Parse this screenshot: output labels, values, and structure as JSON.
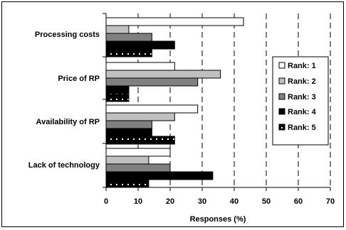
{
  "chart_data": {
    "type": "bar",
    "orientation": "horizontal",
    "categories": [
      "Processing costs",
      "Price of RP",
      "Availability of RP",
      "Lack of technology"
    ],
    "series": [
      {
        "name": "Rank: 1",
        "values": [
          42.9,
          21.4,
          28.6,
          20.0
        ]
      },
      {
        "name": "Rank: 2",
        "values": [
          7.1,
          35.7,
          21.4,
          13.3
        ]
      },
      {
        "name": "Rank: 3",
        "values": [
          14.3,
          28.6,
          14.3,
          20.0
        ]
      },
      {
        "name": "Rank: 4",
        "values": [
          21.4,
          7.1,
          14.3,
          33.3
        ]
      },
      {
        "name": "Rank: 5",
        "values": [
          14.3,
          7.1,
          21.4,
          13.3
        ]
      }
    ],
    "colors": [
      "#ffffff",
      "#c0c0c0",
      "#808080",
      "#000000",
      "#000000"
    ],
    "patterns": [
      "solid",
      "solid",
      "solid",
      "solid",
      "dotted"
    ],
    "xlabel": "Responses (%)",
    "xlim": [
      0,
      70
    ],
    "xticks": [
      0,
      10,
      20,
      30,
      40,
      50,
      60,
      70
    ],
    "grid": "vertical-dashed",
    "legend_position": "right"
  }
}
